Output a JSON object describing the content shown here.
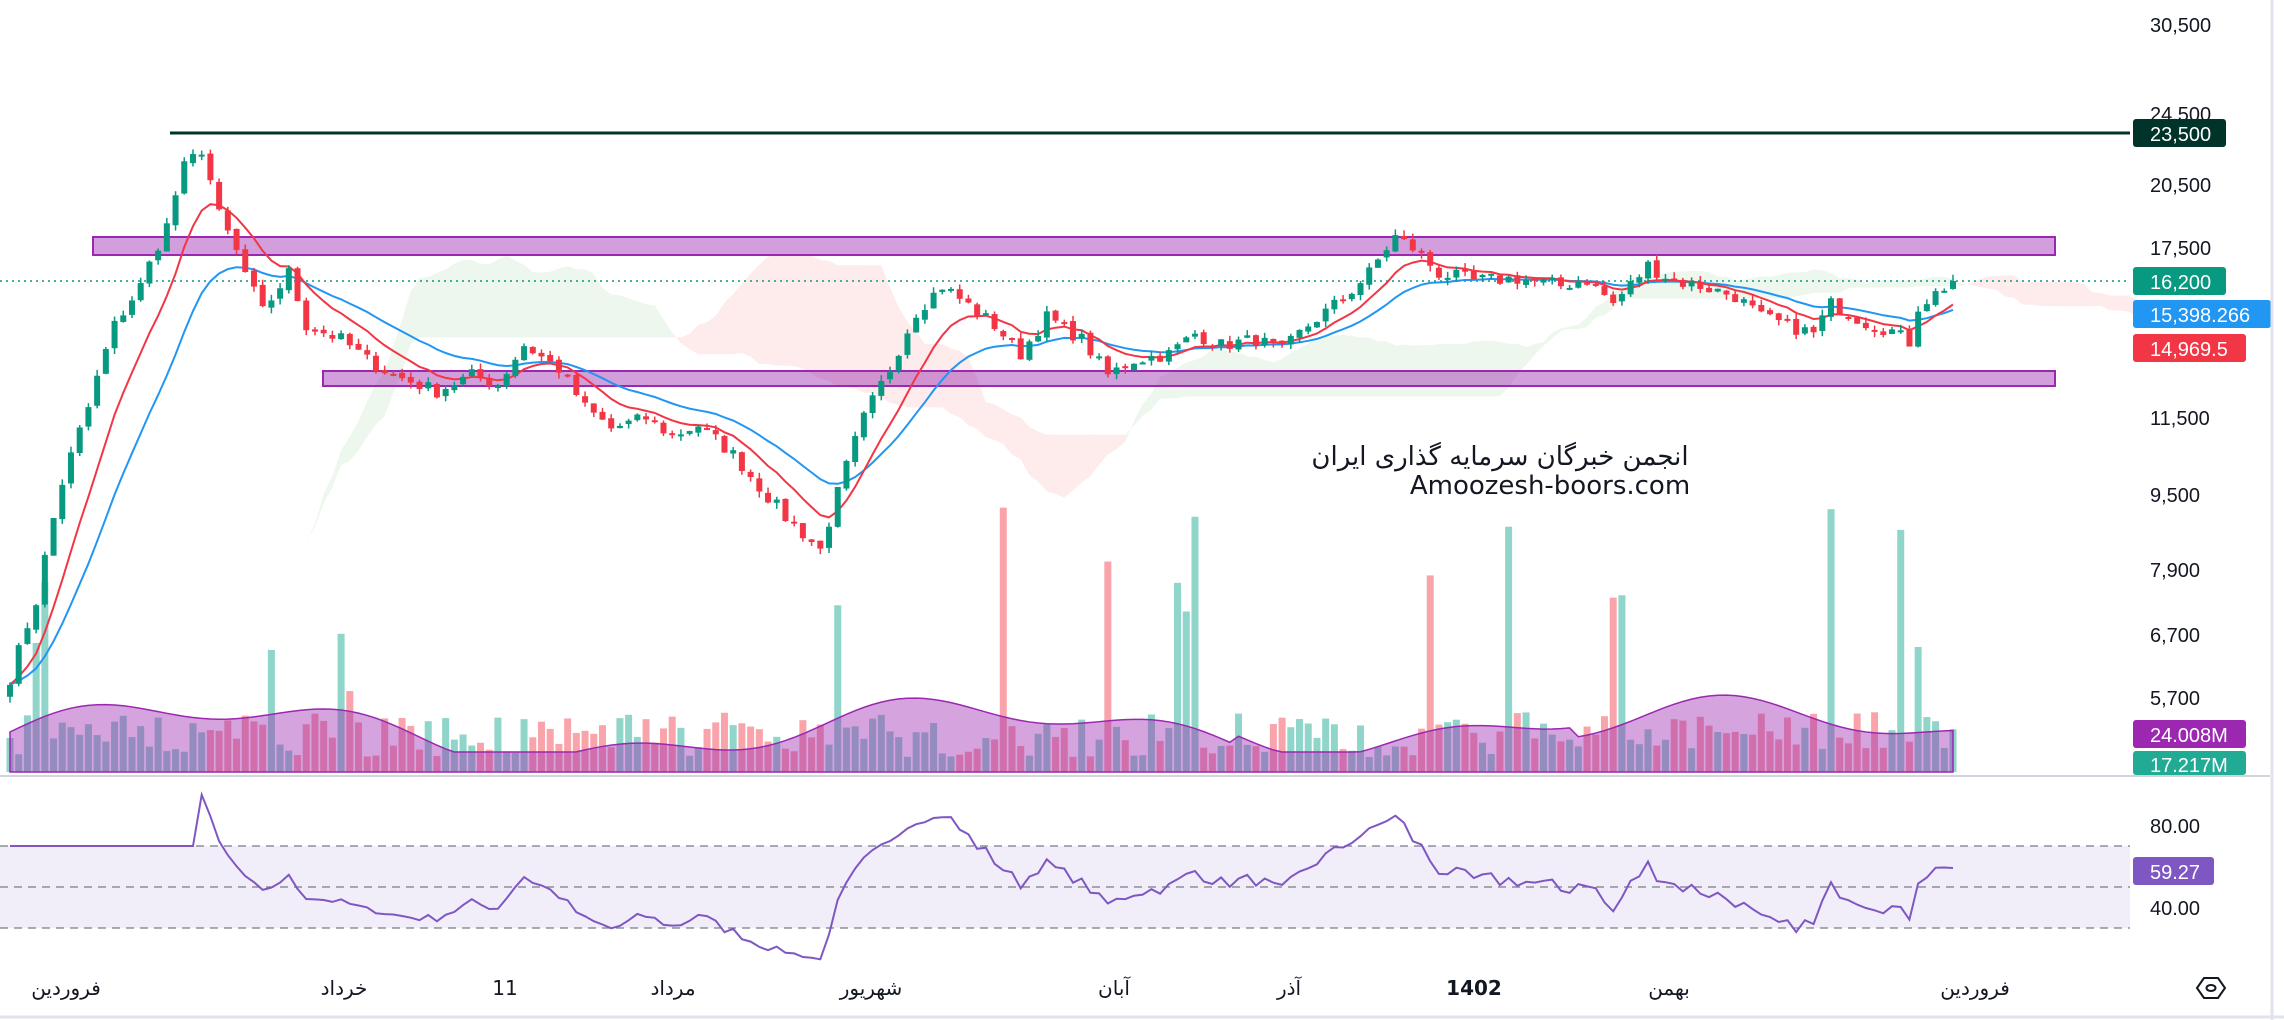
{
  "chart_data": {
    "type": "candlestick",
    "symbol_watermark": [
      "انجمن خبرگان سرمایه گذاری ایران",
      "Amoozesh-boors.com"
    ],
    "price_axis_ticks": [
      "30,500",
      "24,500",
      "20,500",
      "17,500",
      "11,500",
      "9,500",
      "7,900",
      "6,700",
      "5,700"
    ],
    "price_tick_values": [
      30500,
      24500,
      20500,
      17500,
      11500,
      9500,
      7900,
      6700,
      5700
    ],
    "time_axis_labels": [
      "فروردین",
      "خرداد",
      "11",
      "مرداد",
      "شهریور",
      "آبان",
      "آذر",
      "1402",
      "بهمن",
      "فروردین"
    ],
    "close_keypoints": [
      [
        0,
        6000
      ],
      [
        3,
        7300
      ],
      [
        6,
        9800
      ],
      [
        9,
        11800
      ],
      [
        12,
        14500
      ],
      [
        15,
        16000
      ],
      [
        18,
        18500
      ],
      [
        20,
        21500
      ],
      [
        22,
        22500
      ],
      [
        24,
        19000
      ],
      [
        27,
        16500
      ],
      [
        29,
        15000
      ],
      [
        32,
        16500
      ],
      [
        34,
        14500
      ],
      [
        38,
        14000
      ],
      [
        41,
        13300
      ],
      [
        44,
        12800
      ],
      [
        49,
        12300
      ],
      [
        53,
        12800
      ],
      [
        56,
        12500
      ],
      [
        59,
        13800
      ],
      [
        63,
        13000
      ],
      [
        66,
        11800
      ],
      [
        69,
        11200
      ],
      [
        73,
        11500
      ],
      [
        76,
        11000
      ],
      [
        79,
        11300
      ],
      [
        83,
        10500
      ],
      [
        86,
        9700
      ],
      [
        89,
        9000
      ],
      [
        93,
        8300
      ],
      [
        94,
        8900
      ],
      [
        98,
        11500
      ],
      [
        101,
        13000
      ],
      [
        104,
        15000
      ],
      [
        107,
        16000
      ],
      [
        109,
        15500
      ],
      [
        113,
        14500
      ],
      [
        116,
        13500
      ],
      [
        119,
        14800
      ],
      [
        123,
        14000
      ],
      [
        126,
        12800
      ],
      [
        129,
        13300
      ],
      [
        133,
        13500
      ],
      [
        136,
        14200
      ],
      [
        139,
        13800
      ],
      [
        143,
        14000
      ],
      [
        146,
        13600
      ],
      [
        149,
        14500
      ],
      [
        153,
        15500
      ],
      [
        156,
        16500
      ],
      [
        159,
        18000
      ],
      [
        161,
        17500
      ],
      [
        164,
        16500
      ],
      [
        168,
        16200
      ],
      [
        173,
        16300
      ],
      [
        178,
        16000
      ],
      [
        181,
        16300
      ],
      [
        184,
        15300
      ],
      [
        188,
        16800
      ],
      [
        191,
        16200
      ],
      [
        194,
        16000
      ],
      [
        198,
        15600
      ],
      [
        201,
        14800
      ],
      [
        204,
        14500
      ],
      [
        207,
        14200
      ],
      [
        209,
        15300
      ],
      [
        213,
        14600
      ],
      [
        216,
        14300
      ],
      [
        218,
        13900
      ],
      [
        219,
        15200
      ],
      [
        223,
        16200
      ]
    ],
    "levels": {
      "resistance_line": {
        "value": 23500,
        "label": "23,500",
        "color": "#00332a"
      },
      "upper_zone": [
        17000,
        18200
      ],
      "lower_zone": [
        12000,
        12600
      ]
    },
    "last_values": {
      "price": {
        "label": "16,200",
        "color": "#089981"
      },
      "ma_long": {
        "label": "15,398.266",
        "color": "#2196f3"
      },
      "ma_short": {
        "label": "14,969.5",
        "color": "#f23645"
      },
      "volume_ma": {
        "label": "24.008M",
        "color": "#9c27b0"
      },
      "volume": {
        "label": "17.217M",
        "color": "#22ab94"
      }
    },
    "rsi": {
      "axis_ticks": [
        "80.00",
        "40.00"
      ],
      "last": "59.27",
      "bands": [
        70,
        50,
        30
      ],
      "color": "#7e57c2"
    },
    "colors": {
      "up": "#089981",
      "down": "#f23645"
    }
  }
}
